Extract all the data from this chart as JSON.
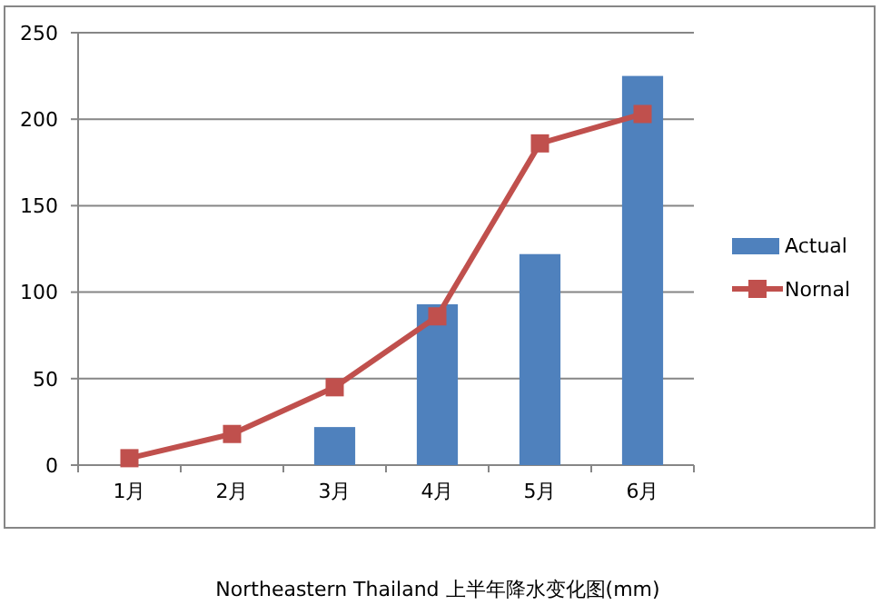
{
  "chart_data": {
    "type": "bar",
    "title": "Northeastern Thailand  上半年降水变化图(mm)",
    "categories": [
      "1月",
      "2月",
      "3月",
      "4月",
      "5月",
      "6月"
    ],
    "series": [
      {
        "name": "Actual",
        "color": "#4f81bd",
        "values": [
          0,
          0,
          22,
          93,
          122,
          225
        ]
      },
      {
        "name": "Nornal",
        "type": "line",
        "color": "#c0504d",
        "marker": "square",
        "values": [
          4,
          18,
          45,
          86,
          186,
          203
        ]
      }
    ],
    "ylim": [
      0,
      250
    ],
    "yticks": [
      0,
      50,
      100,
      150,
      200,
      250
    ],
    "grid": "y",
    "legend": "right"
  }
}
